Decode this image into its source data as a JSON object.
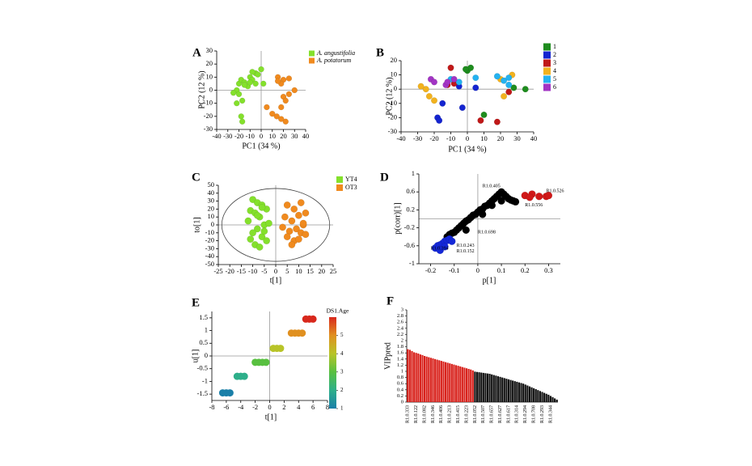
{
  "chart_data": [
    {
      "type": "scatter",
      "panel": "A",
      "x_label": "PC1 (34 %)",
      "y_label": "PC2 (12 %)",
      "xlim": [
        -40,
        40
      ],
      "ylim": [
        -30,
        30
      ],
      "xticks": [
        -40,
        -30,
        -20,
        -10,
        0,
        10,
        20,
        30,
        40
      ],
      "yticks": [
        -30,
        -20,
        -10,
        0,
        10,
        20,
        30
      ],
      "zero_lines": true,
      "legend_style": "italic",
      "series": [
        {
          "name": "A. angustifolia",
          "color": "#84e02c",
          "x": [
            -20,
            -18,
            -15,
            -12,
            -22,
            -25,
            -20,
            -17,
            -22,
            -10,
            -8,
            -5,
            0,
            -3,
            -8,
            -15,
            -10,
            2,
            -5,
            -18,
            -17
          ],
          "y": [
            5,
            8,
            6,
            3,
            0,
            -2,
            -3,
            -8,
            -10,
            10,
            8,
            13,
            16,
            12,
            14,
            4,
            6,
            5,
            5,
            -20,
            -24
          ]
        },
        {
          "name": "A. potatorum",
          "color": "#f08a1e",
          "x": [
            15,
            20,
            25,
            18,
            30,
            25,
            20,
            22,
            18,
            5,
            14,
            22,
            18,
            10,
            15
          ],
          "y": [
            10,
            8,
            9,
            5,
            0,
            -3,
            -5,
            -8,
            -13,
            -13,
            -20,
            -24,
            -22,
            -18,
            7
          ]
        }
      ]
    },
    {
      "type": "scatter",
      "panel": "B",
      "x_label": "PC1 (34 %)",
      "y_label": "PC2 (12 %)",
      "xlim": [
        -40,
        40
      ],
      "ylim": [
        -30,
        20
      ],
      "xticks": [
        -40,
        -30,
        -20,
        -10,
        0,
        10,
        20,
        30,
        40
      ],
      "yticks": [
        -30,
        -20,
        -10,
        0,
        10,
        20
      ],
      "zero_lines": true,
      "series": [
        {
          "name": "1",
          "color": "#1e8c1e",
          "x": [
            0,
            2,
            -1,
            35,
            28,
            10
          ],
          "y": [
            13,
            15,
            14,
            0,
            1,
            -18
          ]
        },
        {
          "name": "2",
          "color": "#1424d0",
          "x": [
            -18,
            -17,
            -5,
            -15,
            -3,
            5
          ],
          "y": [
            -20,
            -22,
            2,
            -10,
            -13,
            1
          ]
        },
        {
          "name": "3",
          "color": "#c01818",
          "x": [
            -10,
            -12,
            8,
            18,
            25,
            -8
          ],
          "y": [
            15,
            3,
            -22,
            -23,
            -2,
            4
          ]
        },
        {
          "name": "4",
          "color": "#f2b21e",
          "x": [
            -25,
            -23,
            -20,
            -28,
            20,
            22,
            27
          ],
          "y": [
            0,
            -5,
            -8,
            2,
            7,
            -5,
            10
          ]
        },
        {
          "name": "5",
          "color": "#24b2f0",
          "x": [
            5,
            18,
            22,
            25,
            -10,
            25,
            -5
          ],
          "y": [
            8,
            9,
            6,
            8,
            7,
            3,
            5
          ]
        },
        {
          "name": "6",
          "color": "#a234c4",
          "x": [
            -22,
            -20,
            -13,
            -12,
            -8
          ],
          "y": [
            7,
            5,
            3,
            5,
            7
          ]
        }
      ]
    },
    {
      "type": "scatter",
      "panel": "C",
      "x_label": "t[1]",
      "y_label": "to[1]",
      "xlim": [
        -25,
        25
      ],
      "ylim": [
        -50,
        50
      ],
      "xticks": [
        -25,
        -20,
        -15,
        -10,
        -5,
        0,
        5,
        10,
        15,
        20,
        25
      ],
      "yticks": [
        -50,
        -40,
        -30,
        -20,
        -10,
        0,
        10,
        20,
        30,
        40,
        50
      ],
      "zero_lines": true,
      "ellipse": true,
      "series": [
        {
          "name": "YT4",
          "color": "#84e02c",
          "x": [
            -10,
            -8,
            -6,
            -4,
            -11,
            -9,
            -7,
            -12,
            -5,
            -8,
            -10,
            -6,
            -4,
            -9,
            -7,
            -11,
            -5,
            -8,
            -6,
            -3
          ],
          "y": [
            32,
            28,
            25,
            20,
            18,
            15,
            10,
            5,
            0,
            -5,
            -10,
            -15,
            -20,
            -25,
            -28,
            -18,
            -8,
            12,
            22,
            2
          ]
        },
        {
          "name": "OT3",
          "color": "#f08a1e",
          "x": [
            5,
            8,
            11,
            13,
            4,
            7,
            10,
            12,
            3,
            6,
            9,
            11,
            5,
            8,
            10,
            13,
            7,
            12
          ],
          "y": [
            25,
            20,
            28,
            15,
            10,
            5,
            12,
            0,
            -3,
            -8,
            -5,
            -10,
            -15,
            -20,
            -18,
            -12,
            -25,
            2
          ]
        }
      ]
    },
    {
      "type": "scatter",
      "panel": "D",
      "x_label": "p[1]",
      "y_label": "p(corr)[1]",
      "xlim": [
        -0.25,
        0.35
      ],
      "ylim": [
        -1,
        1
      ],
      "xticks": [
        -0.2,
        -0.1,
        0,
        0.1,
        0.2,
        0.3
      ],
      "yticks": [
        -1,
        -0.6,
        -0.2,
        0.2,
        0.6,
        1
      ],
      "zero_lines": true,
      "series": [
        {
          "color": "#000000",
          "x": [
            -0.13,
            -0.12,
            -0.11,
            -0.1,
            -0.09,
            -0.08,
            -0.07,
            -0.06,
            -0.05,
            -0.04,
            -0.03,
            -0.02,
            -0.01,
            0,
            0.01,
            0.02,
            0.03,
            0.04,
            0.05,
            0.06,
            0.07,
            0.08,
            0.09,
            0.1,
            0.11,
            0.12,
            0.13,
            0.14,
            0.15,
            0.16,
            -0.05,
            0.02,
            0.06,
            0.1
          ],
          "y": [
            -0.4,
            -0.35,
            -0.32,
            -0.3,
            -0.25,
            -0.2,
            -0.15,
            -0.1,
            -0.05,
            -0.02,
            0.03,
            0.08,
            0.1,
            0.15,
            0.2,
            0.22,
            0.28,
            0.3,
            0.35,
            0.4,
            0.45,
            0.5,
            0.55,
            0.6,
            0.55,
            0.5,
            0.45,
            0.42,
            0.4,
            0.38,
            -0.25,
            0.1,
            0.3,
            0.4
          ]
        },
        {
          "color": "#1428d8",
          "x": [
            -0.18,
            -0.17,
            -0.16,
            -0.15,
            -0.14,
            -0.13,
            -0.12,
            -0.16,
            -0.14,
            -0.11
          ],
          "y": [
            -0.65,
            -0.6,
            -0.58,
            -0.55,
            -0.5,
            -0.48,
            -0.45,
            -0.7,
            -0.62,
            -0.5
          ]
        },
        {
          "color": "#d01818",
          "x": [
            0.2,
            0.23,
            0.26,
            0.29,
            0.3,
            0.22
          ],
          "y": [
            0.52,
            0.55,
            0.5,
            0.5,
            0.52,
            0.48
          ]
        }
      ],
      "annotations": [
        {
          "text": "R1.0.405",
          "x": 0.02,
          "y": 0.73,
          "color": "#000000"
        },
        {
          "text": "R1.0.526",
          "x": 0.29,
          "y": 0.62,
          "color": "#b01010"
        },
        {
          "text": "R1.0.556",
          "x": 0.2,
          "y": 0.3,
          "color": "#000000"
        },
        {
          "text": "R1.0.698",
          "x": 0.0,
          "y": -0.3,
          "color": "#000000"
        },
        {
          "text": "R1.0.243",
          "x": -0.09,
          "y": -0.6,
          "color": "#1428a0"
        },
        {
          "text": "R1.0.152",
          "x": -0.09,
          "y": -0.72,
          "color": "#1428a0"
        },
        {
          "text": "R1.0.394",
          "x": -0.2,
          "y": -0.66,
          "color": "#1428a0"
        }
      ]
    },
    {
      "type": "scatter",
      "panel": "E",
      "x_label": "t[1]",
      "y_label": "u[1]",
      "colorbar_label": "DS1.Age",
      "xlim": [
        -8,
        8
      ],
      "ylim": [
        -1.75,
        1.75
      ],
      "xticks": [
        -8,
        -6,
        -4,
        -2,
        0,
        2,
        4,
        6,
        8
      ],
      "yticks": [
        -1.5,
        -1,
        -0.5,
        0,
        0.5,
        1,
        1.5
      ],
      "zlim": [
        1,
        6
      ],
      "zticks": [
        1,
        2,
        3,
        4,
        5
      ],
      "colormap": [
        "#1a7fa8",
        "#2eaf8a",
        "#58c040",
        "#b8c428",
        "#e09020",
        "#d8281c"
      ],
      "zero_lines": true,
      "series": [
        {
          "x": [
            -6.5,
            -6,
            -5.5,
            -4.5,
            -4,
            -3.5,
            -2,
            -1.5,
            -1,
            -0.5,
            0.5,
            1,
            1.5,
            3,
            3.5,
            4,
            4.5,
            5,
            5.5,
            6
          ],
          "y": [
            -1.45,
            -1.45,
            -1.45,
            -0.8,
            -0.8,
            -0.8,
            -0.25,
            -0.25,
            -0.25,
            -0.25,
            0.3,
            0.3,
            0.3,
            0.9,
            0.9,
            0.9,
            0.9,
            1.45,
            1.45,
            1.45
          ],
          "z": [
            1,
            1,
            1,
            2,
            2,
            2,
            3,
            3,
            3,
            3,
            4,
            4,
            4,
            5,
            5,
            5,
            5,
            6,
            6,
            6
          ]
        }
      ]
    },
    {
      "type": "bar",
      "panel": "F",
      "y_label": "VIPpred",
      "ylim": [
        0,
        3
      ],
      "yticks": [
        0,
        0.2,
        0.4,
        0.6,
        0.8,
        1,
        1.2,
        1.4,
        1.6,
        1.8,
        2,
        2.2,
        2.4,
        2.6,
        2.8,
        3
      ],
      "categories": [
        "R1.0.333",
        null,
        null,
        null,
        "R1.0.122",
        null,
        null,
        null,
        "R1.0.082",
        null,
        null,
        null,
        "R1.0.346",
        null,
        null,
        null,
        "R1.0.406",
        null,
        null,
        null,
        "R1.0.213",
        null,
        null,
        null,
        "R1.0.415",
        null,
        null,
        null,
        "R1.0.223",
        null,
        null,
        null,
        "R1.0.052",
        null,
        null,
        null,
        "R1.0.507",
        null,
        null,
        null,
        "R1.0.657",
        null,
        null,
        null,
        "R1.0.627",
        null,
        null,
        null,
        "R1.0.617",
        null,
        null,
        null,
        "R1.0.314",
        null,
        null,
        null,
        "R1.0.294",
        null,
        null,
        null,
        "R1.0.708",
        null,
        null,
        null,
        "R1.0.293",
        null,
        null,
        null,
        "R1.0.344",
        null,
        null,
        null
      ],
      "values": [
        1.72,
        1.7,
        1.66,
        1.62,
        1.6,
        1.58,
        1.55,
        1.53,
        1.5,
        1.48,
        1.46,
        1.44,
        1.42,
        1.4,
        1.38,
        1.36,
        1.34,
        1.32,
        1.3,
        1.28,
        1.26,
        1.24,
        1.22,
        1.2,
        1.18,
        1.16,
        1.14,
        1.12,
        1.1,
        1.08,
        1.06,
        1.03,
        0.99,
        0.98,
        0.97,
        0.96,
        0.95,
        0.94,
        0.93,
        0.92,
        0.9,
        0.88,
        0.86,
        0.84,
        0.82,
        0.8,
        0.78,
        0.76,
        0.74,
        0.72,
        0.7,
        0.68,
        0.66,
        0.64,
        0.62,
        0.6,
        0.57,
        0.54,
        0.51,
        0.48,
        0.45,
        0.42,
        0.39,
        0.36,
        0.33,
        0.3,
        0.27,
        0.24,
        0.2,
        0.16,
        0.12,
        0.08
      ],
      "colors": [
        "#d8221c",
        "#d8221c",
        "#d8221c",
        "#d8221c",
        "#d8221c",
        "#d8221c",
        "#d8221c",
        "#d8221c",
        "#d8221c",
        "#d8221c",
        "#d8221c",
        "#d8221c",
        "#d8221c",
        "#d8221c",
        "#d8221c",
        "#d8221c",
        "#d8221c",
        "#d8221c",
        "#d8221c",
        "#d8221c",
        "#d8221c",
        "#d8221c",
        "#d8221c",
        "#d8221c",
        "#d8221c",
        "#d8221c",
        "#d8221c",
        "#d8221c",
        "#d8221c",
        "#d8221c",
        "#d8221c",
        "#d8221c",
        "#111111",
        "#111111",
        "#111111",
        "#111111",
        "#111111",
        "#111111",
        "#111111",
        "#111111",
        "#111111",
        "#111111",
        "#111111",
        "#111111",
        "#111111",
        "#111111",
        "#111111",
        "#111111",
        "#111111",
        "#111111",
        "#111111",
        "#111111",
        "#111111",
        "#111111",
        "#111111",
        "#111111",
        "#111111",
        "#111111",
        "#111111",
        "#111111",
        "#111111",
        "#111111",
        "#111111",
        "#111111",
        "#111111",
        "#111111",
        "#111111",
        "#111111",
        "#111111",
        "#111111",
        "#111111",
        "#111111"
      ]
    }
  ]
}
